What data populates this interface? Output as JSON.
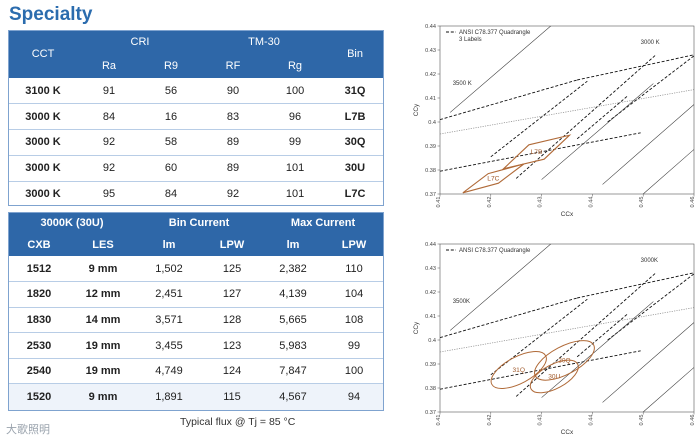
{
  "title": "Specialty",
  "table1": {
    "group_headers": {
      "cct": "CCT",
      "cri": "CRI",
      "tm30": "TM-30",
      "bin": "Bin"
    },
    "sub_headers": [
      "Ra",
      "R9",
      "RF",
      "Rg"
    ],
    "rows": [
      [
        "3100 K",
        "91",
        "56",
        "90",
        "100",
        "31Q"
      ],
      [
        "3000 K",
        "84",
        "16",
        "83",
        "96",
        "L7B"
      ],
      [
        "3000 K",
        "92",
        "58",
        "89",
        "99",
        "30Q"
      ],
      [
        "3000 K",
        "92",
        "60",
        "89",
        "101",
        "30U"
      ],
      [
        "3000 K",
        "95",
        "84",
        "92",
        "101",
        "L7C"
      ]
    ]
  },
  "table2": {
    "group_headers": {
      "variant": "3000K (30U)",
      "bin_current": "Bin Current",
      "max_current": "Max Current"
    },
    "sub_headers": [
      "CXB",
      "LES",
      "lm",
      "LPW",
      "lm",
      "LPW"
    ],
    "rows": [
      [
        "1512",
        "9 mm",
        "1,502",
        "125",
        "2,382",
        "110"
      ],
      [
        "1820",
        "12 mm",
        "2,451",
        "127",
        "4,139",
        "104"
      ],
      [
        "1830",
        "14 mm",
        "3,571",
        "128",
        "5,665",
        "108"
      ],
      [
        "2530",
        "19 mm",
        "3,455",
        "123",
        "5,983",
        "99"
      ],
      [
        "2540",
        "19 mm",
        "4,749",
        "124",
        "7,847",
        "100"
      ],
      [
        "1520",
        "9 mm",
        "1,891",
        "115",
        "4,567",
        "94"
      ]
    ]
  },
  "footnote": "Typical flux @ Tj = 85 °C",
  "watermark": "大歌照明",
  "chart_data": [
    {
      "type": "line",
      "title": "",
      "xlabel": "CCx",
      "ylabel": "CCy",
      "xlim": [
        0.41,
        0.46
      ],
      "ylim": [
        0.37,
        0.44
      ],
      "x_ticks": [
        "0.41",
        "0.42",
        "0.43",
        "0.44",
        "0.45",
        "0.46"
      ],
      "y_ticks": [
        "0.37",
        "0.38",
        "0.39",
        "0.4",
        "0.41",
        "0.42",
        "0.43",
        "0.44"
      ],
      "legend": [
        "ANSI C78.377 Quadrangle",
        "3 Labels"
      ],
      "legend_position": "top-left",
      "cct_labels": [
        {
          "text": "3500 K",
          "x": 0.4125,
          "y": 0.4155
        },
        {
          "text": "3000 K",
          "x": 0.4495,
          "y": 0.4325
        }
      ],
      "bins": [
        {
          "label": "L7B",
          "points": [
            [
              0.4275,
              0.3905
            ],
            [
              0.4355,
              0.3945
            ],
            [
              0.4305,
              0.3845
            ],
            [
              0.4225,
              0.3805
            ]
          ]
        },
        {
          "label": "L7C",
          "points": [
            [
              0.4195,
              0.3785
            ],
            [
              0.4265,
              0.3825
            ],
            [
              0.4215,
              0.3745
            ],
            [
              0.4145,
              0.3705
            ]
          ]
        }
      ]
    },
    {
      "type": "line",
      "title": "",
      "xlabel": "CCx",
      "ylabel": "CCy",
      "xlim": [
        0.41,
        0.46
      ],
      "ylim": [
        0.37,
        0.44
      ],
      "x_ticks": [
        "0.41",
        "0.42",
        "0.43",
        "0.44",
        "0.45",
        "0.46"
      ],
      "y_ticks": [
        "0.37",
        "0.38",
        "0.39",
        "0.4",
        "0.41",
        "0.42",
        "0.43",
        "0.44"
      ],
      "legend": [
        "ANSI C78.377 Quadrangle"
      ],
      "legend_position": "top-left",
      "cct_labels": [
        {
          "text": "3500K",
          "x": 0.4125,
          "y": 0.4155
        },
        {
          "text": "3000K",
          "x": 0.4495,
          "y": 0.4325
        }
      ],
      "bins": [
        {
          "label": "30Q",
          "cx": 0.4345,
          "cy": 0.3915,
          "rx": 0.0065,
          "ry": 0.0058
        },
        {
          "label": "31Q",
          "cx": 0.4255,
          "cy": 0.3875,
          "rx": 0.006,
          "ry": 0.0055
        },
        {
          "label": "30U",
          "cx": 0.4325,
          "cy": 0.3848,
          "rx": 0.0052,
          "ry": 0.005
        }
      ]
    }
  ]
}
